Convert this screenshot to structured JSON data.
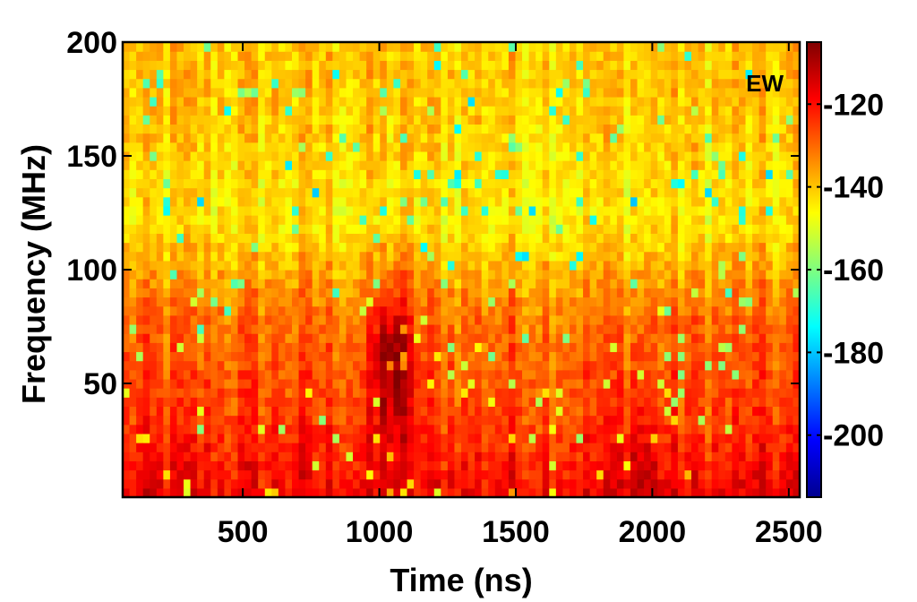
{
  "chart_data": {
    "type": "heatmap",
    "title": "",
    "annotation": "EW",
    "xlabel": "Time (ns)",
    "ylabel": "Frequency (MHz)",
    "xlim": [
      60,
      2540
    ],
    "ylim": [
      0,
      200
    ],
    "x_ticks": [
      500,
      1000,
      1500,
      2000,
      2500
    ],
    "x_tick_labels": [
      "500",
      "1000",
      "1500",
      "2000",
      "2500"
    ],
    "y_ticks": [
      50,
      100,
      150,
      200
    ],
    "y_tick_labels": [
      "50",
      "100",
      "150",
      "200"
    ],
    "colorbar": {
      "range": [
        -215,
        -105
      ],
      "ticks": [
        -120,
        -140,
        -160,
        -180,
        -200
      ],
      "tick_labels": [
        "-120",
        "-140",
        "-160",
        "-180",
        "-200"
      ],
      "colormap": "jet"
    },
    "grid": false,
    "time_bins": 100,
    "frequency_bins": 50,
    "intensity_profile": {
      "frequency_mhz": [
        0,
        20,
        40,
        60,
        80,
        100,
        120,
        140,
        160,
        180,
        200
      ],
      "typical_power": [
        -118,
        -122,
        -126,
        -128,
        -131,
        -137,
        -144,
        -143,
        -141,
        -140,
        -140
      ]
    },
    "hotspots": [
      {
        "time_ns": 1050,
        "frequency_mhz": 60,
        "power": -106
      },
      {
        "time_ns": 1950,
        "frequency_mhz": 10,
        "power": -112
      }
    ]
  }
}
